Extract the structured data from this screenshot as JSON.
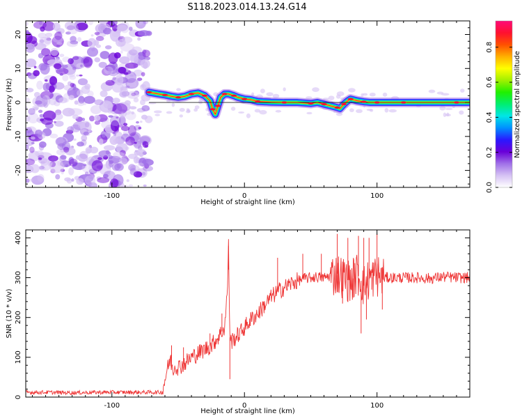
{
  "figure": {
    "title": "S118.2023.014.13.24.G14"
  },
  "chart_data": [
    {
      "type": "heatmap",
      "name": "spectrogram",
      "xlabel": "Height of straight line (km)",
      "ylabel": "Frequency (Hz)",
      "xlim": [
        -165,
        170
      ],
      "ylim": [
        -25,
        24
      ],
      "xticks": [
        -100,
        0,
        100
      ],
      "yticks": [
        -20,
        -10,
        0,
        10,
        20
      ],
      "grid": false,
      "noise_region_x": [
        -165,
        -72
      ],
      "signal_start_x": -72,
      "ridge": {
        "x": [
          -72,
          -65,
          -60,
          -55,
          -50,
          -45,
          -40,
          -35,
          -30,
          -26,
          -24,
          -22,
          -20,
          -18,
          -15,
          -12,
          -8,
          -5,
          0,
          5,
          10,
          20,
          30,
          40,
          50,
          55,
          60,
          65,
          70,
          72,
          75,
          78,
          80,
          85,
          90,
          95,
          100,
          110,
          120,
          140,
          160,
          170
        ],
        "y": [
          3,
          2.5,
          2.2,
          1.8,
          1.5,
          1.8,
          2.5,
          2.8,
          2.0,
          0.5,
          -2.0,
          -3.5,
          -1.0,
          1.5,
          2.5,
          2.5,
          2.0,
          1.5,
          1.0,
          0.8,
          0.3,
          0.1,
          0.0,
          0.0,
          -0.3,
          0.0,
          -0.5,
          -1.0,
          -1.5,
          -1.8,
          -0.5,
          0.5,
          1.0,
          0.5,
          0.2,
          0.0,
          0.0,
          0.0,
          0.0,
          0.0,
          0.0,
          0.0
        ]
      },
      "colorbar": {
        "label": "Normalized spectral amplitude",
        "range": [
          0.0,
          0.95
        ],
        "ticks": [
          "0.0",
          "0.2",
          "0.4",
          "0.6",
          "0.8"
        ],
        "tick_values": [
          0.0,
          0.2,
          0.4,
          0.6,
          0.8
        ],
        "colors": [
          "#ffffff",
          "#d6c2f4",
          "#a070e8",
          "#6a00d8",
          "#2a18ff",
          "#0090ff",
          "#00e6e6",
          "#00ee70",
          "#20f000",
          "#a0f000",
          "#ffff00",
          "#ffb000",
          "#ff5000",
          "#ff1030",
          "#ff0a78"
        ]
      }
    },
    {
      "type": "line",
      "name": "snr",
      "xlabel": "Height of straight line (km)",
      "ylabel": "SNR (10 * v/v)",
      "xlim": [
        -165,
        170
      ],
      "ylim": [
        0,
        420
      ],
      "xticks": [
        -100,
        0,
        100
      ],
      "yticks": [
        0,
        100,
        200,
        300,
        400
      ],
      "grid": false,
      "color": "#ee3333",
      "series": [
        {
          "x": [
            -165,
            -150,
            -130,
            -110,
            -90,
            -75,
            -62,
            -59,
            -56,
            -54,
            -52,
            -50,
            -45,
            -40,
            -35,
            -30,
            -25,
            -20,
            -15,
            -13,
            -12,
            -11,
            -10,
            -5,
            0,
            5,
            10,
            15,
            20,
            25,
            30,
            35,
            40,
            45,
            50,
            55,
            60,
            65,
            70,
            75,
            80,
            85,
            90,
            95,
            100,
            105,
            110,
            120,
            130,
            140,
            150,
            160,
            170
          ],
          "y": [
            12,
            12,
            11,
            12,
            12,
            12,
            12,
            60,
            95,
            70,
            80,
            75,
            85,
            100,
            110,
            120,
            130,
            150,
            175,
            260,
            380,
            150,
            140,
            155,
            175,
            195,
            210,
            230,
            250,
            265,
            275,
            285,
            292,
            298,
            300,
            302,
            300,
            305,
            310,
            300,
            290,
            310,
            280,
            300,
            305,
            300,
            300,
            300,
            300,
            298,
            302,
            300,
            300
          ]
        }
      ],
      "spikes": {
        "x": [
          -55,
          -46,
          -26,
          -17,
          -12,
          -11,
          25,
          44,
          58,
          70,
          74,
          78,
          82,
          86,
          88,
          90,
          92,
          94,
          96,
          100,
          104
        ],
        "y": [
          130,
          125,
          160,
          210,
          320,
          45,
          350,
          360,
          360,
          410,
          235,
          400,
          250,
          405,
          160,
          400,
          195,
          400,
          270,
          410,
          220
        ]
      }
    }
  ]
}
